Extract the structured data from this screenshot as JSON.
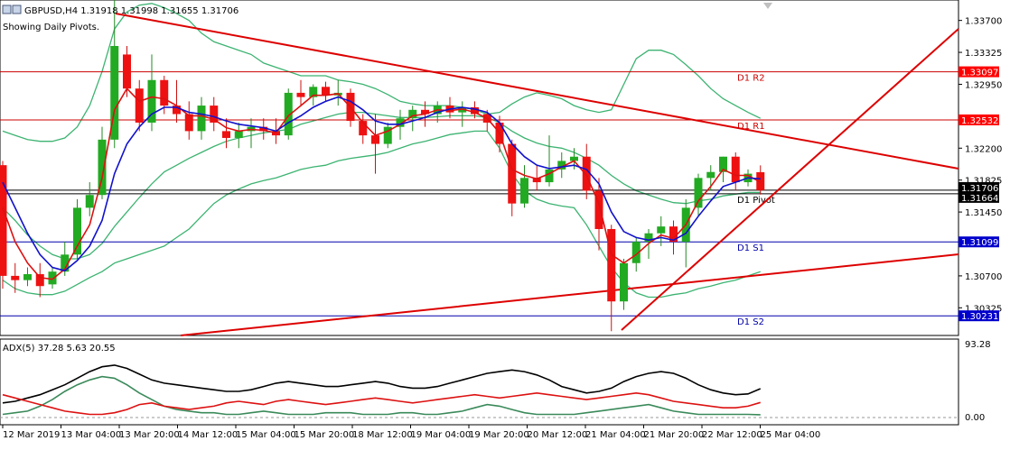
{
  "header": {
    "symbol_line": "GBPUSD,H4  1.31918 1.31998 1.31655 1.31706",
    "subtitle": "Showing Daily Pivots."
  },
  "chart_data": {
    "type": "candlestick",
    "symbol": "GBPUSD",
    "timeframe": "H4",
    "ohlc_readout": {
      "open": 1.31918,
      "high": 1.31998,
      "low": 1.31655,
      "close": 1.31706
    },
    "price_range": [
      1.3,
      1.3394
    ],
    "price_ticks": [
      "1.33700",
      "1.33325",
      "1.32950",
      "1.32200",
      "1.31825",
      "1.31450",
      "1.30700",
      "1.30325"
    ],
    "price_tags": [
      {
        "label": "1.33097",
        "value": 1.33097,
        "color": "#ff0000"
      },
      {
        "label": "1.32532",
        "value": 1.32532,
        "color": "#ff0000"
      },
      {
        "label": "1.31706",
        "value": 1.31706,
        "color": "#000000"
      },
      {
        "label": "1.31664",
        "value": 1.31664,
        "color": "#000000"
      },
      {
        "label": "1.31099",
        "value": 1.31099,
        "color": "#0000cc"
      },
      {
        "label": "1.30231",
        "value": 1.30231,
        "color": "#0000cc"
      }
    ],
    "pivots": [
      {
        "label": "D1 R2",
        "value": 1.33097,
        "color": "#cc0000"
      },
      {
        "label": "D1 R1",
        "value": 1.32532,
        "color": "#cc0000"
      },
      {
        "label": "D1 Pivot",
        "value": 1.31664,
        "color": "#000000"
      },
      {
        "label": "D1 S1",
        "value": 1.31099,
        "color": "#0000aa"
      },
      {
        "label": "D1 S2",
        "value": 1.30231,
        "color": "#0000aa"
      }
    ],
    "time_labels": [
      "12 Mar 2019",
      "13 Mar 04:00",
      "13 Mar 20:00",
      "14 Mar 12:00",
      "15 Mar 04:00",
      "15 Mar 20:00",
      "18 Mar 12:00",
      "19 Mar 04:00",
      "19 Mar 20:00",
      "20 Mar 12:00",
      "21 Mar 04:00",
      "21 Mar 20:00",
      "22 Mar 12:00",
      "25 Mar 04:00"
    ],
    "candles": [
      {
        "o": 1.32,
        "h": 1.3205,
        "l": 1.3055,
        "c": 1.307
      },
      {
        "o": 1.307,
        "h": 1.3085,
        "l": 1.305,
        "c": 1.3065
      },
      {
        "o": 1.3065,
        "h": 1.308,
        "l": 1.3058,
        "c": 1.3072
      },
      {
        "o": 1.3072,
        "h": 1.3085,
        "l": 1.3045,
        "c": 1.3058
      },
      {
        "o": 1.306,
        "h": 1.308,
        "l": 1.3055,
        "c": 1.3075
      },
      {
        "o": 1.3075,
        "h": 1.311,
        "l": 1.307,
        "c": 1.3095
      },
      {
        "o": 1.3095,
        "h": 1.316,
        "l": 1.309,
        "c": 1.315
      },
      {
        "o": 1.315,
        "h": 1.318,
        "l": 1.314,
        "c": 1.3165
      },
      {
        "o": 1.3165,
        "h": 1.3245,
        "l": 1.316,
        "c": 1.323
      },
      {
        "o": 1.323,
        "h": 1.3394,
        "l": 1.322,
        "c": 1.334
      },
      {
        "o": 1.333,
        "h": 1.334,
        "l": 1.328,
        "c": 1.329
      },
      {
        "o": 1.329,
        "h": 1.33,
        "l": 1.324,
        "c": 1.325
      },
      {
        "o": 1.325,
        "h": 1.333,
        "l": 1.324,
        "c": 1.33
      },
      {
        "o": 1.33,
        "h": 1.3305,
        "l": 1.326,
        "c": 1.327
      },
      {
        "o": 1.327,
        "h": 1.33,
        "l": 1.325,
        "c": 1.326
      },
      {
        "o": 1.326,
        "h": 1.3275,
        "l": 1.323,
        "c": 1.324
      },
      {
        "o": 1.324,
        "h": 1.328,
        "l": 1.323,
        "c": 1.327
      },
      {
        "o": 1.327,
        "h": 1.328,
        "l": 1.324,
        "c": 1.325
      },
      {
        "o": 1.324,
        "h": 1.3255,
        "l": 1.322,
        "c": 1.3232
      },
      {
        "o": 1.3232,
        "h": 1.325,
        "l": 1.322,
        "c": 1.324
      },
      {
        "o": 1.324,
        "h": 1.3255,
        "l": 1.322,
        "c": 1.3245
      },
      {
        "o": 1.3245,
        "h": 1.3255,
        "l": 1.323,
        "c": 1.324
      },
      {
        "o": 1.324,
        "h": 1.3255,
        "l": 1.3225,
        "c": 1.3235
      },
      {
        "o": 1.3235,
        "h": 1.329,
        "l": 1.323,
        "c": 1.3285
      },
      {
        "o": 1.3285,
        "h": 1.33,
        "l": 1.327,
        "c": 1.328
      },
      {
        "o": 1.328,
        "h": 1.3295,
        "l": 1.327,
        "c": 1.3292
      },
      {
        "o": 1.3292,
        "h": 1.3298,
        "l": 1.3275,
        "c": 1.3282
      },
      {
        "o": 1.3282,
        "h": 1.33,
        "l": 1.327,
        "c": 1.3285
      },
      {
        "o": 1.3285,
        "h": 1.329,
        "l": 1.3245,
        "c": 1.3252
      },
      {
        "o": 1.3252,
        "h": 1.326,
        "l": 1.3225,
        "c": 1.3235
      },
      {
        "o": 1.3235,
        "h": 1.326,
        "l": 1.319,
        "c": 1.3225
      },
      {
        "o": 1.3225,
        "h": 1.325,
        "l": 1.322,
        "c": 1.3245
      },
      {
        "o": 1.3245,
        "h": 1.3265,
        "l": 1.323,
        "c": 1.3255
      },
      {
        "o": 1.3255,
        "h": 1.327,
        "l": 1.324,
        "c": 1.3265
      },
      {
        "o": 1.3265,
        "h": 1.3275,
        "l": 1.3245,
        "c": 1.326
      },
      {
        "o": 1.326,
        "h": 1.3275,
        "l": 1.325,
        "c": 1.327
      },
      {
        "o": 1.327,
        "h": 1.328,
        "l": 1.3255,
        "c": 1.3262
      },
      {
        "o": 1.3262,
        "h": 1.3275,
        "l": 1.3245,
        "c": 1.3268
      },
      {
        "o": 1.3268,
        "h": 1.3275,
        "l": 1.3255,
        "c": 1.326
      },
      {
        "o": 1.326,
        "h": 1.3265,
        "l": 1.324,
        "c": 1.325
      },
      {
        "o": 1.325,
        "h": 1.3258,
        "l": 1.3215,
        "c": 1.3225
      },
      {
        "o": 1.3225,
        "h": 1.323,
        "l": 1.314,
        "c": 1.3155
      },
      {
        "o": 1.3155,
        "h": 1.32,
        "l": 1.315,
        "c": 1.3185
      },
      {
        "o": 1.3185,
        "h": 1.32,
        "l": 1.317,
        "c": 1.318
      },
      {
        "o": 1.318,
        "h": 1.3235,
        "l": 1.3175,
        "c": 1.3195
      },
      {
        "o": 1.3195,
        "h": 1.3215,
        "l": 1.3185,
        "c": 1.3205
      },
      {
        "o": 1.3205,
        "h": 1.322,
        "l": 1.3195,
        "c": 1.321
      },
      {
        "o": 1.321,
        "h": 1.3225,
        "l": 1.316,
        "c": 1.317
      },
      {
        "o": 1.317,
        "h": 1.3185,
        "l": 1.31,
        "c": 1.3125
      },
      {
        "o": 1.3125,
        "h": 1.313,
        "l": 1.3005,
        "c": 1.304
      },
      {
        "o": 1.304,
        "h": 1.309,
        "l": 1.303,
        "c": 1.3085
      },
      {
        "o": 1.3085,
        "h": 1.3115,
        "l": 1.3075,
        "c": 1.311
      },
      {
        "o": 1.311,
        "h": 1.3125,
        "l": 1.309,
        "c": 1.312
      },
      {
        "o": 1.312,
        "h": 1.314,
        "l": 1.3105,
        "c": 1.3128
      },
      {
        "o": 1.3128,
        "h": 1.3135,
        "l": 1.3095,
        "c": 1.311
      },
      {
        "o": 1.311,
        "h": 1.316,
        "l": 1.308,
        "c": 1.315
      },
      {
        "o": 1.315,
        "h": 1.319,
        "l": 1.314,
        "c": 1.3185
      },
      {
        "o": 1.3185,
        "h": 1.32,
        "l": 1.317,
        "c": 1.3192
      },
      {
        "o": 1.3192,
        "h": 1.321,
        "l": 1.318,
        "c": 1.321
      },
      {
        "o": 1.321,
        "h": 1.3215,
        "l": 1.317,
        "c": 1.318
      },
      {
        "o": 1.318,
        "h": 1.3195,
        "l": 1.3175,
        "c": 1.319
      },
      {
        "o": 1.31918,
        "h": 1.31998,
        "l": 1.31655,
        "c": 1.31706
      }
    ],
    "red_ma": [
      1.315,
      1.311,
      1.3085,
      1.3068,
      1.3066,
      1.3078,
      1.3105,
      1.313,
      1.3185,
      1.3265,
      1.329,
      1.3275,
      1.328,
      1.3278,
      1.327,
      1.3258,
      1.3258,
      1.3254,
      1.3244,
      1.324,
      1.3242,
      1.3241,
      1.3238,
      1.3258,
      1.327,
      1.3282,
      1.3282,
      1.3284,
      1.3268,
      1.325,
      1.3235,
      1.324,
      1.3248,
      1.3258,
      1.326,
      1.3265,
      1.3264,
      1.3266,
      1.3262,
      1.3255,
      1.3238,
      1.3195,
      1.3188,
      1.3184,
      1.319,
      1.3198,
      1.3205,
      1.3188,
      1.3155,
      1.3095,
      1.3085,
      1.3095,
      1.3108,
      1.3118,
      1.3114,
      1.313,
      1.3158,
      1.3175,
      1.3195,
      1.3188,
      1.3188,
      1.318
    ],
    "blue_ma": [
      1.318,
      1.315,
      1.312,
      1.3095,
      1.308,
      1.3076,
      1.3088,
      1.3105,
      1.3135,
      1.319,
      1.3225,
      1.3245,
      1.326,
      1.3268,
      1.3268,
      1.3262,
      1.326,
      1.3257,
      1.3252,
      1.3248,
      1.3246,
      1.3244,
      1.324,
      1.325,
      1.3258,
      1.3268,
      1.3275,
      1.328,
      1.3275,
      1.3265,
      1.3252,
      1.3248,
      1.3248,
      1.3252,
      1.3256,
      1.3262,
      1.3266,
      1.3268,
      1.3266,
      1.3262,
      1.325,
      1.3225,
      1.321,
      1.32,
      1.3196,
      1.3198,
      1.32,
      1.3195,
      1.3178,
      1.3145,
      1.3122,
      1.3115,
      1.3112,
      1.3115,
      1.3112,
      1.312,
      1.314,
      1.3158,
      1.3175,
      1.318,
      1.3185,
      1.3184
    ],
    "bb_upper": [
      1.324,
      1.3235,
      1.323,
      1.3228,
      1.3228,
      1.3232,
      1.3245,
      1.327,
      1.331,
      1.336,
      1.338,
      1.3388,
      1.339,
      1.3385,
      1.3378,
      1.337,
      1.3355,
      1.3345,
      1.334,
      1.3335,
      1.333,
      1.332,
      1.3315,
      1.331,
      1.3305,
      1.3305,
      1.3305,
      1.33,
      1.3298,
      1.3295,
      1.329,
      1.3283,
      1.3275,
      1.3272,
      1.327,
      1.327,
      1.327,
      1.3268,
      1.3265,
      1.326,
      1.3262,
      1.3272,
      1.328,
      1.3285,
      1.3282,
      1.3278,
      1.327,
      1.3265,
      1.3262,
      1.3265,
      1.3295,
      1.3325,
      1.3335,
      1.3335,
      1.333,
      1.3318,
      1.3305,
      1.329,
      1.3278,
      1.327,
      1.3262,
      1.3255
    ],
    "bb_mid": [
      1.315,
      1.3135,
      1.3118,
      1.3105,
      1.3095,
      1.309,
      1.309,
      1.3095,
      1.3108,
      1.3128,
      1.3145,
      1.3162,
      1.3178,
      1.3192,
      1.32,
      1.3208,
      1.3215,
      1.3222,
      1.3228,
      1.3232,
      1.3235,
      1.3238,
      1.324,
      1.3242,
      1.3248,
      1.3252,
      1.3256,
      1.326,
      1.3262,
      1.3262,
      1.326,
      1.3258,
      1.3256,
      1.3256,
      1.3256,
      1.3257,
      1.3258,
      1.3258,
      1.3258,
      1.3256,
      1.325,
      1.324,
      1.3232,
      1.3226,
      1.3222,
      1.322,
      1.3215,
      1.3208,
      1.32,
      1.3188,
      1.3178,
      1.317,
      1.3165,
      1.316,
      1.3156,
      1.3155,
      1.3158,
      1.316,
      1.3164,
      1.3166,
      1.3168,
      1.3168
    ],
    "bb_lower": [
      1.3065,
      1.3055,
      1.305,
      1.3048,
      1.3048,
      1.3052,
      1.306,
      1.3068,
      1.3075,
      1.3085,
      1.309,
      1.3095,
      1.31,
      1.3105,
      1.3115,
      1.3125,
      1.314,
      1.3155,
      1.3165,
      1.3172,
      1.3178,
      1.3182,
      1.3185,
      1.319,
      1.3195,
      1.3198,
      1.32,
      1.3205,
      1.3208,
      1.321,
      1.3212,
      1.3215,
      1.322,
      1.3225,
      1.3228,
      1.3232,
      1.3236,
      1.3238,
      1.324,
      1.324,
      1.322,
      1.319,
      1.317,
      1.316,
      1.3155,
      1.3152,
      1.315,
      1.313,
      1.3105,
      1.308,
      1.3062,
      1.305,
      1.3045,
      1.3045,
      1.3048,
      1.305,
      1.3055,
      1.3058,
      1.3062,
      1.3065,
      1.307,
      1.3075
    ],
    "adx_panel": {
      "label": "ADX(5) 37.28 5.63 20.55",
      "scale_top": "93.28",
      "scale_bottom": "0.00",
      "range": [
        0,
        93.28
      ],
      "adx": [
        20,
        22,
        26,
        30,
        36,
        42,
        50,
        58,
        64,
        66,
        62,
        55,
        48,
        44,
        42,
        40,
        38,
        36,
        34,
        34,
        36,
        40,
        44,
        46,
        44,
        42,
        40,
        40,
        42,
        44,
        46,
        44,
        40,
        38,
        38,
        40,
        44,
        48,
        52,
        56,
        58,
        60,
        58,
        54,
        48,
        40,
        36,
        32,
        34,
        38,
        46,
        52,
        56,
        58,
        56,
        50,
        42,
        36,
        32,
        30,
        31,
        37.28
      ],
      "plus_di": [
        6,
        8,
        10,
        16,
        24,
        34,
        42,
        48,
        52,
        50,
        42,
        32,
        24,
        16,
        12,
        10,
        8,
        8,
        6,
        6,
        8,
        10,
        8,
        6,
        6,
        6,
        8,
        8,
        8,
        6,
        6,
        6,
        8,
        8,
        6,
        6,
        8,
        10,
        14,
        18,
        16,
        12,
        8,
        6,
        6,
        6,
        6,
        8,
        10,
        12,
        14,
        16,
        18,
        14,
        10,
        8,
        6,
        6,
        6,
        6,
        6,
        5.63
      ],
      "minus_di": [
        30,
        26,
        22,
        18,
        14,
        10,
        8,
        6,
        6,
        8,
        12,
        18,
        20,
        16,
        14,
        12,
        14,
        16,
        20,
        22,
        20,
        18,
        22,
        24,
        22,
        20,
        18,
        20,
        22,
        24,
        26,
        24,
        22,
        20,
        22,
        24,
        26,
        28,
        30,
        28,
        26,
        28,
        30,
        32,
        30,
        28,
        26,
        24,
        26,
        28,
        30,
        32,
        30,
        26,
        22,
        20,
        18,
        16,
        14,
        14,
        16,
        20.55
      ]
    }
  }
}
